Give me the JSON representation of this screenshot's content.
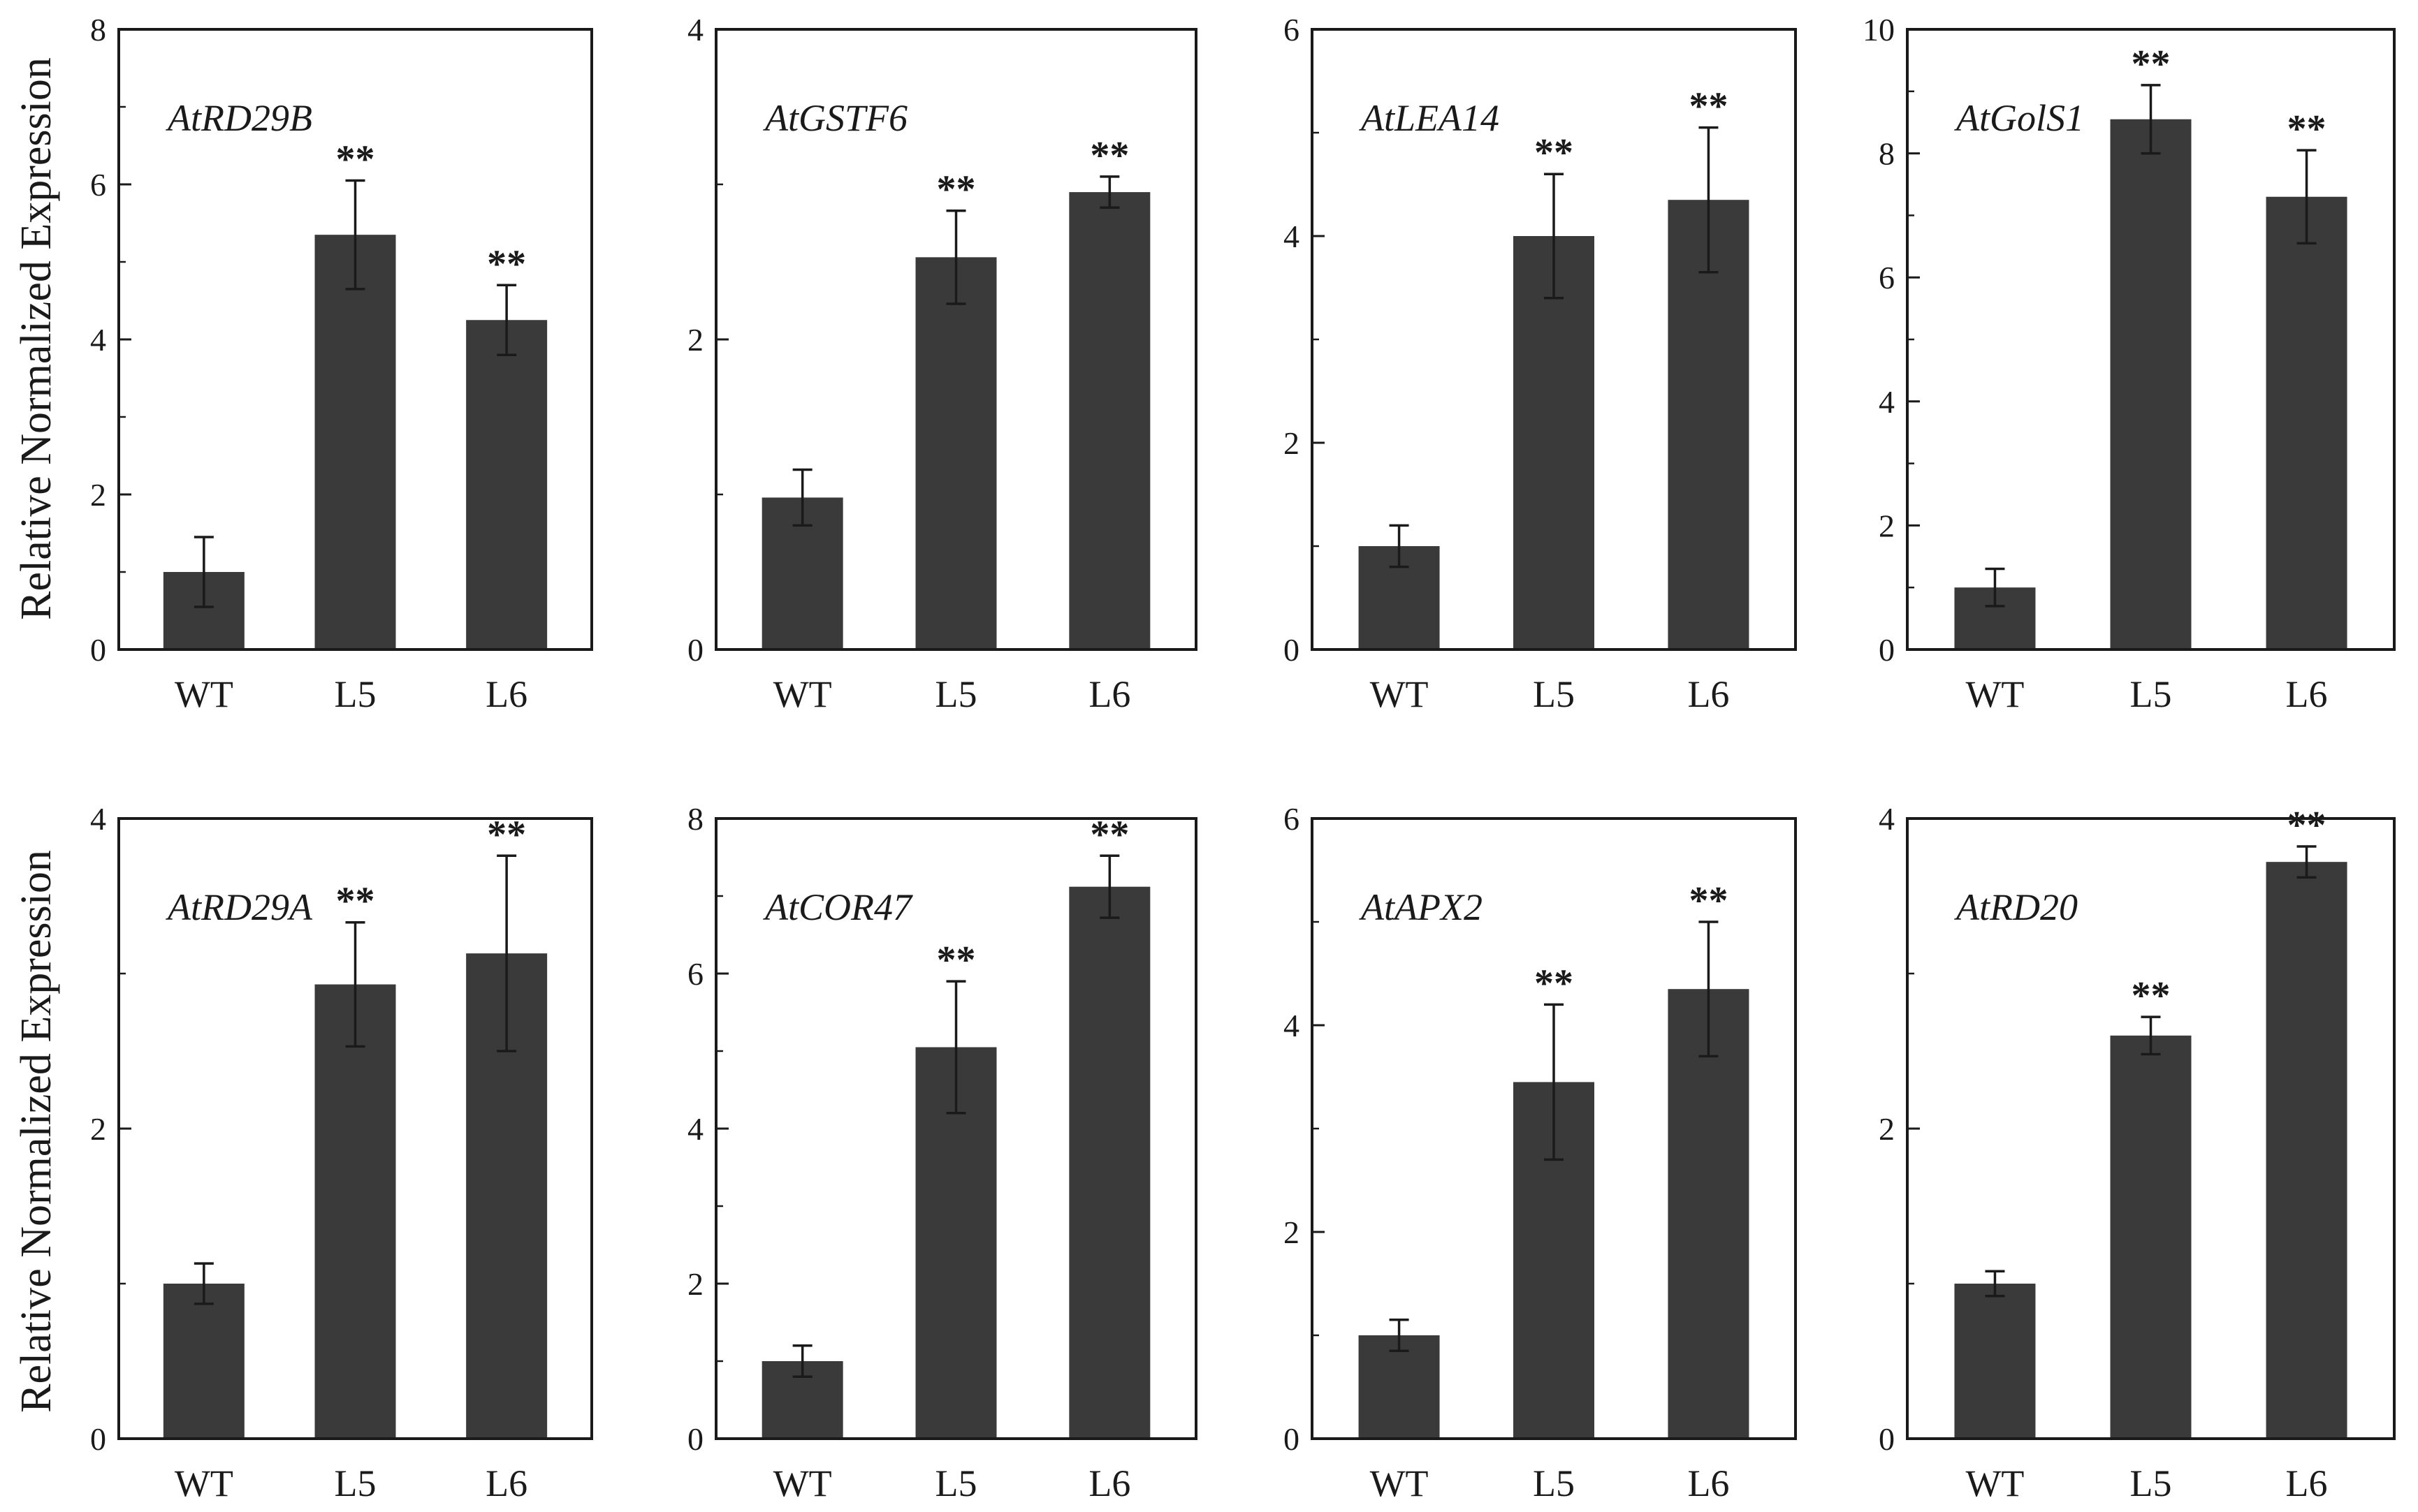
{
  "figure": {
    "ylabel_top": "Relative Normalized Expression",
    "ylabel_bottom": "Relative Normalized Expression"
  },
  "style": {
    "bar_color": "#3a3a3a",
    "axis_color": "#1a1a1a"
  },
  "chart_data": [
    {
      "type": "bar",
      "title": "AtRD29B",
      "categories": [
        "WT",
        "L5",
        "L6"
      ],
      "values": [
        1.0,
        5.35,
        4.25
      ],
      "errors": [
        0.45,
        0.7,
        0.45
      ],
      "significance": [
        "",
        "**",
        "**"
      ],
      "ylim": [
        0,
        8
      ],
      "yticks": [
        0,
        2,
        4,
        6,
        8
      ],
      "xlabel": "",
      "ylabel": "Relative Normalized Expression"
    },
    {
      "type": "bar",
      "title": "AtGSTF6",
      "categories": [
        "WT",
        "L5",
        "L6"
      ],
      "values": [
        0.98,
        2.53,
        2.95
      ],
      "errors": [
        0.18,
        0.3,
        0.1
      ],
      "significance": [
        "",
        "**",
        "**"
      ],
      "ylim": [
        0,
        4
      ],
      "yticks": [
        0,
        2,
        4
      ],
      "xlabel": "",
      "ylabel": ""
    },
    {
      "type": "bar",
      "title": "AtLEA14",
      "categories": [
        "WT",
        "L5",
        "L6"
      ],
      "values": [
        1.0,
        4.0,
        4.35
      ],
      "errors": [
        0.2,
        0.6,
        0.7
      ],
      "significance": [
        "",
        "**",
        "**"
      ],
      "ylim": [
        0,
        6
      ],
      "yticks": [
        0,
        2,
        4,
        6
      ],
      "xlabel": "",
      "ylabel": ""
    },
    {
      "type": "bar",
      "title": "AtGolS1",
      "categories": [
        "WT",
        "L5",
        "L6"
      ],
      "values": [
        1.0,
        8.55,
        7.3
      ],
      "errors": [
        0.3,
        0.55,
        0.75
      ],
      "significance": [
        "",
        "**",
        "**"
      ],
      "ylim": [
        0,
        10
      ],
      "yticks": [
        0,
        2,
        4,
        6,
        8,
        10
      ],
      "xlabel": "",
      "ylabel": ""
    },
    {
      "type": "bar",
      "title": "AtRD29A",
      "categories": [
        "WT",
        "L5",
        "L6"
      ],
      "values": [
        1.0,
        2.93,
        3.13
      ],
      "errors": [
        0.13,
        0.4,
        0.63
      ],
      "significance": [
        "",
        "**",
        "**"
      ],
      "ylim": [
        0,
        4
      ],
      "yticks": [
        0,
        2,
        4
      ],
      "xlabel": "",
      "ylabel": "Relative Normalized Expression"
    },
    {
      "type": "bar",
      "title": "AtCOR47",
      "categories": [
        "WT",
        "L5",
        "L6"
      ],
      "values": [
        1.0,
        5.05,
        7.12
      ],
      "errors": [
        0.2,
        0.85,
        0.4
      ],
      "significance": [
        "",
        "**",
        "**"
      ],
      "ylim": [
        0,
        8
      ],
      "yticks": [
        0,
        2,
        4,
        6,
        8
      ],
      "xlabel": "",
      "ylabel": ""
    },
    {
      "type": "bar",
      "title": "AtAPX2",
      "categories": [
        "WT",
        "L5",
        "L6"
      ],
      "values": [
        1.0,
        3.45,
        4.35
      ],
      "errors": [
        0.15,
        0.75,
        0.65
      ],
      "significance": [
        "",
        "**",
        "**"
      ],
      "ylim": [
        0,
        6
      ],
      "yticks": [
        0,
        2,
        4,
        6
      ],
      "xlabel": "",
      "ylabel": ""
    },
    {
      "type": "bar",
      "title": "AtRD20",
      "categories": [
        "WT",
        "L5",
        "L6"
      ],
      "values": [
        1.0,
        2.6,
        3.72
      ],
      "errors": [
        0.08,
        0.12,
        0.1
      ],
      "significance": [
        "",
        "**",
        "**"
      ],
      "ylim": [
        0,
        4
      ],
      "yticks": [
        0,
        2,
        4
      ],
      "xlabel": "",
      "ylabel": ""
    }
  ]
}
